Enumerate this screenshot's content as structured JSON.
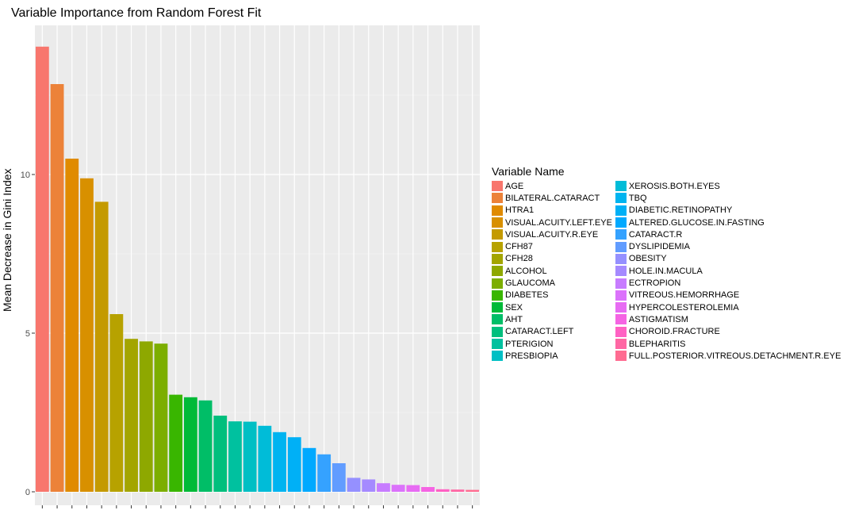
{
  "chart_data": {
    "type": "bar",
    "title": "Variable Importance from Random Forest Fit",
    "xlabel": "",
    "ylabel": "Mean Decrease in Gini Index",
    "ylim": [
      0,
      14.5
    ],
    "yticks": [
      0,
      5,
      10
    ],
    "grid": true,
    "legend_title": "Variable Name",
    "legend_position": "right",
    "categories": [
      "AGE",
      "BILATERAL.CATARACT",
      "HTRA1",
      "VISUAL.ACUITY.LEFT.EYE",
      "VISUAL.ACUITY.R.EYE",
      "CFH87",
      "CFH28",
      "ALCOHOL",
      "GLAUCOMA",
      "DIABETES",
      "SEX",
      "AHT",
      "CATARACT.LEFT",
      "PTERIGION",
      "PRESBIOPIA",
      "XEROSIS.BOTH.EYES",
      "TBQ",
      "DIABETIC.RETINOPATHY",
      "ALTERED.GLUCOSE.IN.FASTING",
      "CATARACT.R",
      "DYSLIPIDEMIA",
      "OBESITY",
      "HOLE.IN.MACULA",
      "ECTROPION",
      "VITREOUS.HEMORRHAGE",
      "HYPERCOLESTEROLEMIA",
      "ASTIGMATISM",
      "CHOROID.FRACTURE",
      "BLEPHARITIS",
      "FULL.POSTERIOR.VITREOUS.DETACHMENT.R.EYE"
    ],
    "values": [
      14.03,
      12.85,
      10.5,
      9.88,
      9.14,
      5.6,
      4.82,
      4.74,
      4.67,
      3.06,
      2.98,
      2.88,
      2.4,
      2.22,
      2.21,
      2.08,
      1.88,
      1.72,
      1.38,
      1.18,
      0.9,
      0.44,
      0.39,
      0.27,
      0.22,
      0.21,
      0.15,
      0.08,
      0.07,
      0.06
    ],
    "colors": [
      "#F8766D",
      "#EC8239",
      "#E08B00",
      "#D89000",
      "#C49A00",
      "#B7A200",
      "#A3A500",
      "#8EA800",
      "#7CAE00",
      "#39B600",
      "#00BA38",
      "#00BE67",
      "#00BF7D",
      "#00C19F",
      "#00BFC4",
      "#00BCD8",
      "#00B4F0",
      "#00B0F6",
      "#00A9FF",
      "#35A2FF",
      "#619CFF",
      "#9590FF",
      "#A58AFF",
      "#C77CFF",
      "#DB72FB",
      "#E76BF3",
      "#F564E3",
      "#FF61C3",
      "#FF67A4",
      "#FF6C91"
    ]
  }
}
